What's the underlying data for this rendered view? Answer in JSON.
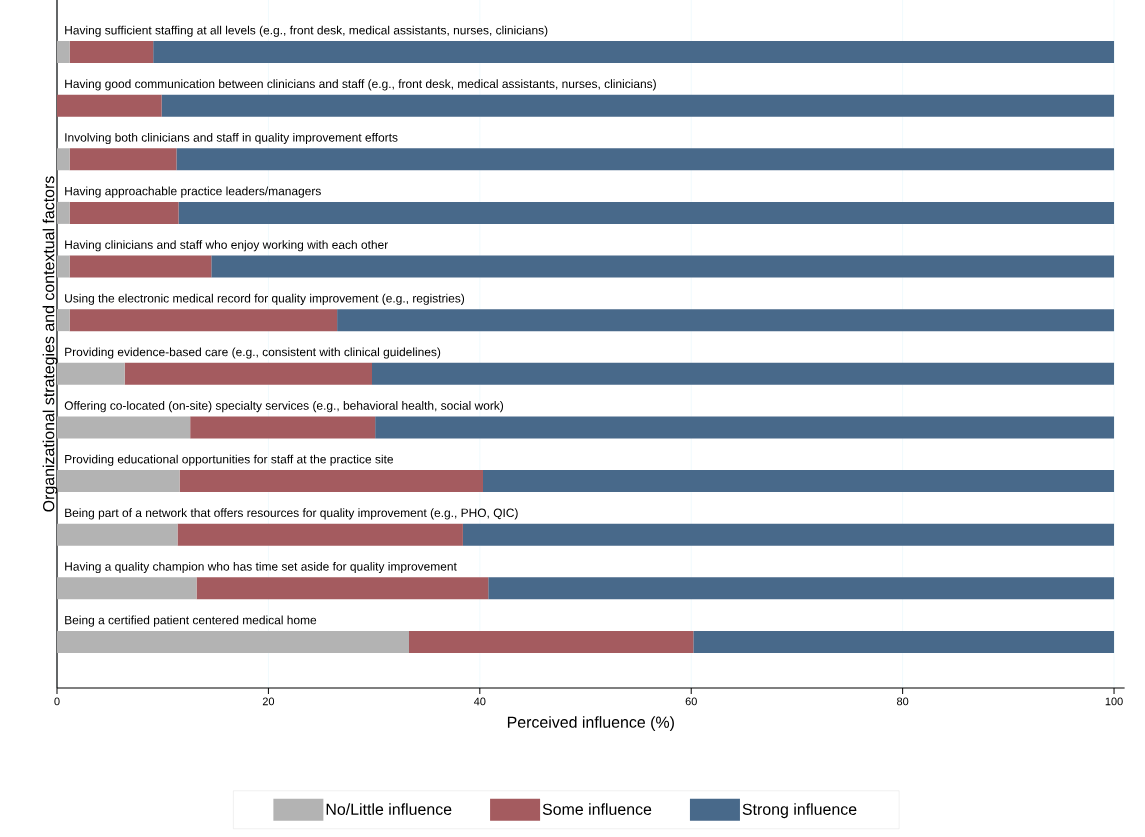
{
  "chart_data": {
    "type": "bar",
    "orientation": "horizontal",
    "stacked": true,
    "xlabel": "Perceived influence (%)",
    "ylabel": "Organizational strategies and contextual factors",
    "categories": [
      "Having sufficient staffing at all levels (e.g., front desk, medical assistants, nurses, clinicians)",
      "Having good communication between clinicians and staff (e.g., front desk, medical assistants, nurses, clinicians)",
      "Involving both clinicians and staff in quality improvement efforts",
      "Having approachable practice leaders/managers",
      "Having clinicians and staff who enjoy working with each other",
      "Using the electronic medical record for quality improvement (e.g., registries)",
      "Providing evidence-based care (e.g., consistent with clinical guidelines)",
      "Offering co-located (on-site) specialty services (e.g., behavioral health, social work)",
      "Providing educational opportunities for staff at the practice site",
      "Being part of a network that offers resources for quality improvement (e.g., PHO, QIC)",
      "Having a quality champion who has time set aside for quality improvement",
      "Being a certified patient centered medical home"
    ],
    "series": [
      {
        "name": "No/Little influence",
        "color": "#b3b3b3",
        "values": [
          1.2,
          0,
          1.2,
          1.2,
          1.2,
          1.2,
          6.4,
          12.6,
          11.6,
          11.4,
          13.2,
          33.3
        ]
      },
      {
        "name": "Some influence",
        "color": "#a45b5f",
        "values": [
          7.9,
          9.9,
          10.1,
          10.3,
          13.4,
          25.3,
          23.4,
          17.5,
          28.7,
          27.0,
          27.6,
          26.9
        ]
      },
      {
        "name": "Strong influence",
        "color": "#48698a",
        "values": [
          90.9,
          90.1,
          88.7,
          88.5,
          85.4,
          73.5,
          70.2,
          69.9,
          59.7,
          61.6,
          59.2,
          39.8
        ]
      }
    ],
    "xlim": [
      0,
      101
    ],
    "xticks": [
      0,
      20,
      40,
      60,
      80,
      100
    ],
    "grid": "x",
    "legend": "bottom"
  }
}
